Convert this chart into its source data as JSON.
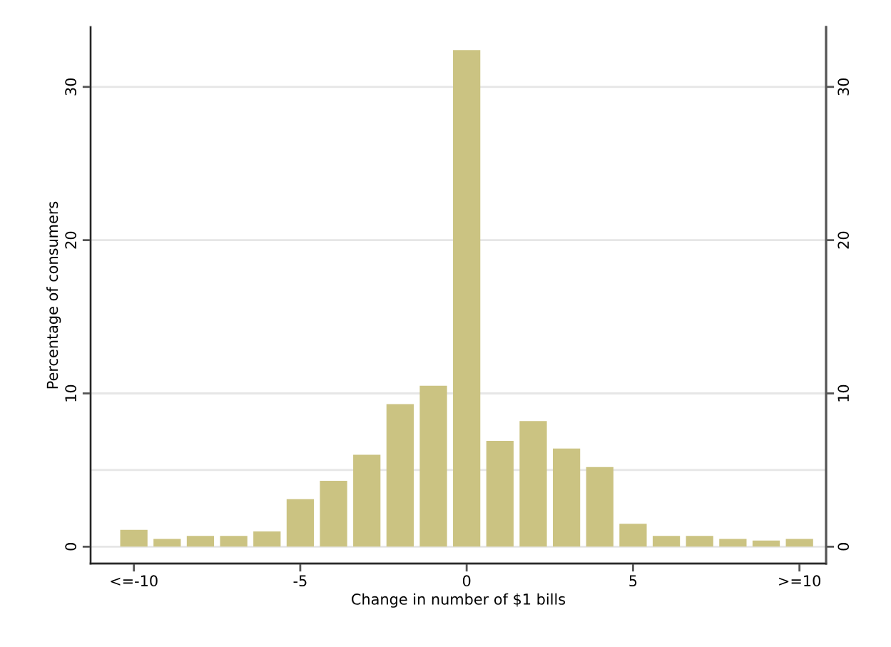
{
  "chart_data": {
    "type": "histogram",
    "xlabel": "Change in number of $1 bills",
    "ylabel": "Percentage of consumers",
    "bins": [
      -10.5,
      -9.5,
      -8.5,
      -7.5,
      -6.5,
      -5.5,
      -4.5,
      -3.5,
      -2.5,
      -1.5,
      -0.5,
      0.5,
      1.5,
      2.5,
      3.5,
      4.5,
      5.5,
      6.5,
      7.5,
      8.5,
      9.5,
      10.5
    ],
    "values": [
      1.1,
      0.5,
      0.7,
      0.7,
      1.0,
      3.1,
      4.3,
      6.0,
      9.3,
      10.5,
      32.4,
      6.9,
      8.2,
      6.4,
      5.2,
      1.5,
      0.7,
      0.7,
      0.5,
      0.4,
      0.5
    ],
    "color": "#cbc382",
    "xlim": [
      -11.3,
      10.8
    ],
    "xticks": [
      {
        "value": -10,
        "label": "<=-10"
      },
      -5,
      0,
      5,
      {
        "value": 10,
        "label": ">=10"
      }
    ],
    "ylim": [
      -1.1,
      33.9
    ],
    "yticks": [
      0,
      10,
      20,
      30
    ],
    "y2lim": [
      -1.1,
      33.9
    ],
    "y2ticks": [
      0,
      10,
      20,
      30
    ],
    "ref_lines": [
      {
        "axis": "y",
        "value": 5,
        "label": null,
        "color": "#e6e6e6"
      }
    ],
    "grid": "y",
    "legend": false
  }
}
